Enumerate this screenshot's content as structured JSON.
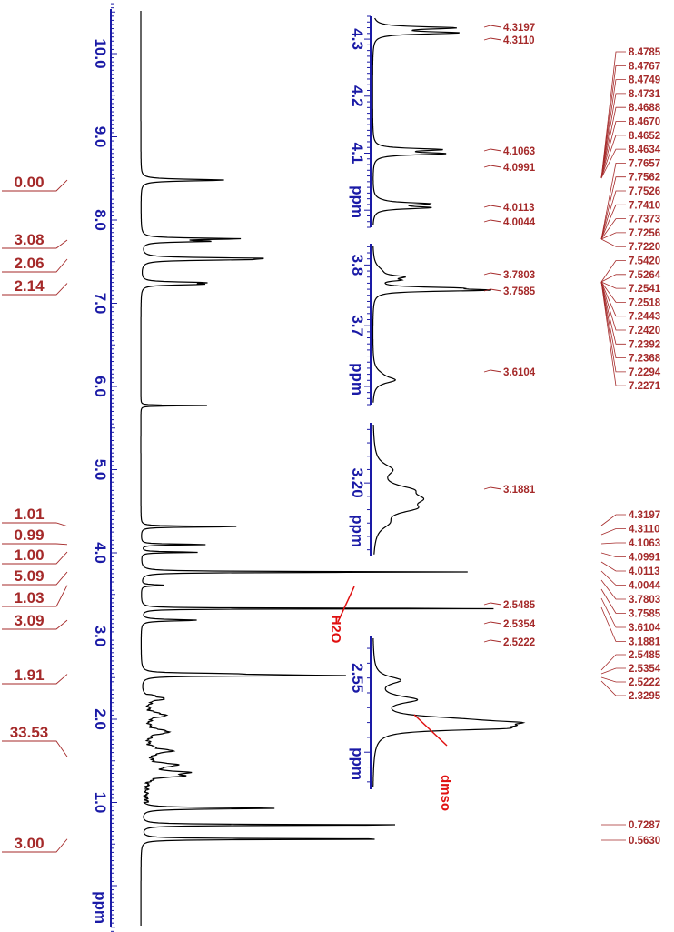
{
  "colors": {
    "axis": "#1a1aa6",
    "spectrum": "#000000",
    "label": "#a52a2a",
    "annotation": "#e01010"
  },
  "chart_data": [
    {
      "type": "line",
      "x_unit": "ppm",
      "axis_ticks": [
        "10.0",
        "9.0",
        "8.0",
        "7.0",
        "6.0",
        "5.0",
        "4.0",
        "3.0",
        "2.0",
        "1.0"
      ],
      "axis_range": [
        10.6,
        -0.7
      ],
      "peaks_ppm": [
        8.48,
        7.76,
        7.73,
        7.53,
        7.24,
        5.77,
        4.32,
        4.1,
        4.01,
        3.77,
        3.61,
        3.33,
        3.19,
        2.55,
        2.53,
        1.32,
        0.73,
        0.56
      ],
      "integrals": [
        {
          "value": "0.00",
          "ppm": 8.48
        },
        {
          "value": "3.08",
          "ppm": 7.76
        },
        {
          "value": "2.06",
          "ppm": 7.53
        },
        {
          "value": "2.14",
          "ppm": 7.24
        },
        {
          "value": "1.01",
          "ppm": 4.32
        },
        {
          "value": "0.99",
          "ppm": 4.1
        },
        {
          "value": "1.00",
          "ppm": 4.01
        },
        {
          "value": "5.09",
          "ppm": 3.77
        },
        {
          "value": "1.03",
          "ppm": 3.61
        },
        {
          "value": "3.09",
          "ppm": 3.19
        },
        {
          "value": "1.91",
          "ppm": 2.54
        },
        {
          "value": "33.53",
          "ppm": 1.55
        },
        {
          "value": "3.00",
          "ppm": 0.56
        }
      ],
      "annotations": [
        "H2O",
        "dmso"
      ]
    },
    {
      "type": "line",
      "x_unit": "ppm",
      "axis_ticks": [
        "4.3",
        "4.2",
        "4.1"
      ],
      "axis_range": [
        4.34,
        3.97
      ],
      "peaks_ppm": [
        4.3197,
        4.311,
        4.1063,
        4.0991,
        4.0113,
        4.0044
      ],
      "peak_labels": [
        "4.3197",
        "4.3110",
        "4.1063",
        "4.0991",
        "4.0113",
        "4.0044"
      ]
    },
    {
      "type": "line",
      "x_unit": "ppm",
      "axis_ticks": [
        "3.8",
        "3.7"
      ],
      "axis_range": [
        3.835,
        3.57
      ],
      "peaks_ppm": [
        3.7803,
        3.7585,
        3.6104
      ],
      "peak_labels": [
        "3.7803",
        "3.7585",
        "3.6104"
      ]
    },
    {
      "type": "line",
      "x_unit": "ppm",
      "axis_ticks": [
        "3.20"
      ],
      "axis_range": [
        3.245,
        3.145
      ],
      "peaks_ppm": [
        3.1881
      ],
      "peak_labels": [
        "3.1881"
      ]
    },
    {
      "type": "line",
      "x_unit": "ppm",
      "axis_ticks": [
        "2.55"
      ],
      "axis_range": [
        2.578,
        2.475
      ],
      "peaks_ppm": [
        2.5485,
        2.5354,
        2.5222
      ],
      "peak_labels": [
        "2.5485",
        "2.5354",
        "2.5222"
      ]
    }
  ],
  "peak_list_groups": [
    [
      "8.4785",
      "8.4767",
      "8.4749",
      "8.4731",
      "8.4688",
      "8.4670",
      "8.4652",
      "8.4634",
      "7.7657",
      "7.7562",
      "7.7526",
      "7.7410",
      "7.7373",
      "7.7256",
      "7.7220",
      "7.5420",
      "7.5264",
      "7.2541",
      "7.2518",
      "7.2443",
      "7.2420",
      "7.2392",
      "7.2368",
      "7.2294",
      "7.2271"
    ],
    [
      "4.3197",
      "4.3110",
      "4.1063",
      "4.0991",
      "4.0113",
      "4.0044",
      "3.7803",
      "3.7585",
      "3.6104",
      "3.1881"
    ],
    [
      "2.5485",
      "2.5354",
      "2.5222",
      "2.3295"
    ],
    [
      "0.7287",
      "0.5630"
    ]
  ]
}
